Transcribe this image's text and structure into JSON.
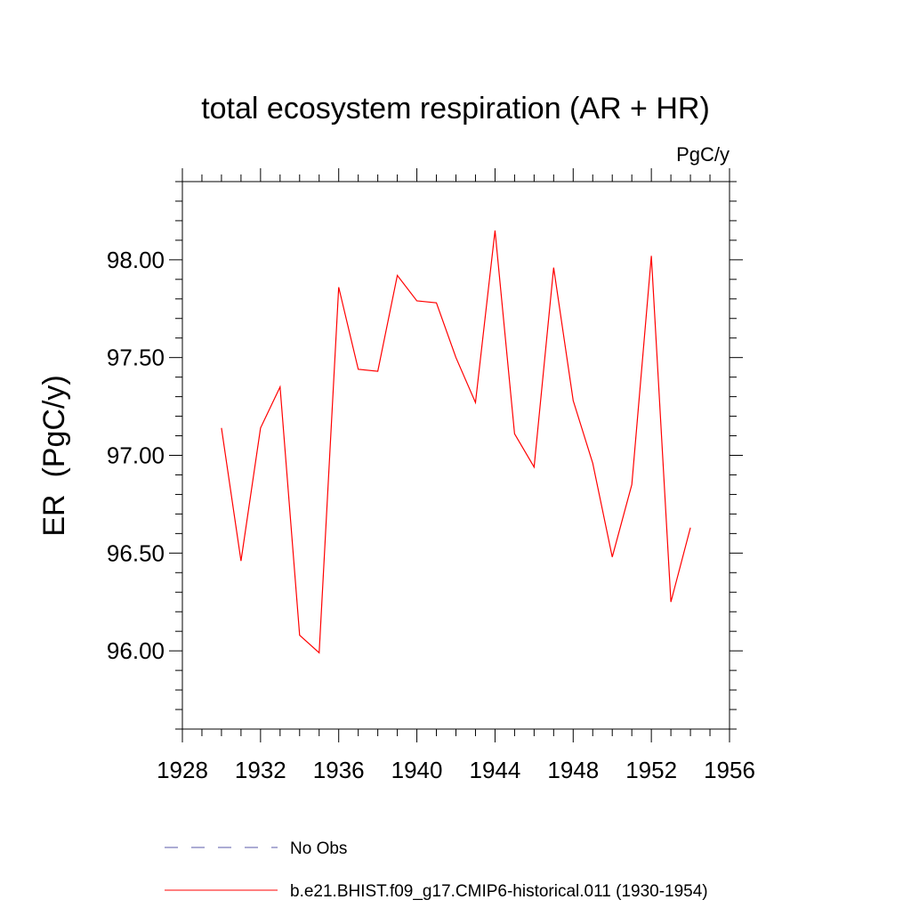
{
  "chart_data": {
    "type": "line",
    "title": "total ecosystem respiration (AR + HR)",
    "units_label": "PgC/y",
    "xlabel": "",
    "ylabel": "ER  (PgC/y)",
    "xlim": [
      1928,
      1956
    ],
    "ylim": [
      95.6,
      98.4
    ],
    "x_ticks": [
      1928,
      1932,
      1936,
      1940,
      1944,
      1948,
      1952,
      1956
    ],
    "x_tick_labels": [
      "1928",
      "1932",
      "1936",
      "1940",
      "1944",
      "1948",
      "1952",
      "1956"
    ],
    "y_ticks": [
      96.0,
      96.5,
      97.0,
      97.5,
      98.0
    ],
    "y_tick_labels": [
      "96.00",
      "96.50",
      "97.00",
      "97.50",
      "98.00"
    ],
    "grid": false,
    "legend_position": "bottom",
    "series": [
      {
        "name": "b.e21.BHIST.f09_g17.CMIP6-historical.011 (1930-1954)",
        "color": "#ff0000",
        "style": "solid",
        "x": [
          1930,
          1931,
          1932,
          1933,
          1934,
          1935,
          1936,
          1937,
          1938,
          1939,
          1940,
          1941,
          1942,
          1943,
          1944,
          1945,
          1946,
          1947,
          1948,
          1949,
          1950,
          1951,
          1952,
          1953,
          1954
        ],
        "y": [
          97.14,
          96.46,
          97.14,
          97.35,
          96.08,
          95.99,
          97.86,
          97.44,
          97.43,
          97.92,
          97.79,
          97.78,
          97.5,
          97.27,
          98.15,
          97.11,
          96.94,
          97.96,
          97.28,
          96.96,
          96.48,
          96.85,
          98.02,
          96.25,
          96.63
        ]
      }
    ],
    "legend": [
      {
        "label": "No Obs",
        "color": "#5a5aaa",
        "style": "dashed"
      },
      {
        "label": "b.e21.BHIST.f09_g17.CMIP6-historical.011 (1930-1954)",
        "color": "#ff0000",
        "style": "solid"
      }
    ]
  }
}
